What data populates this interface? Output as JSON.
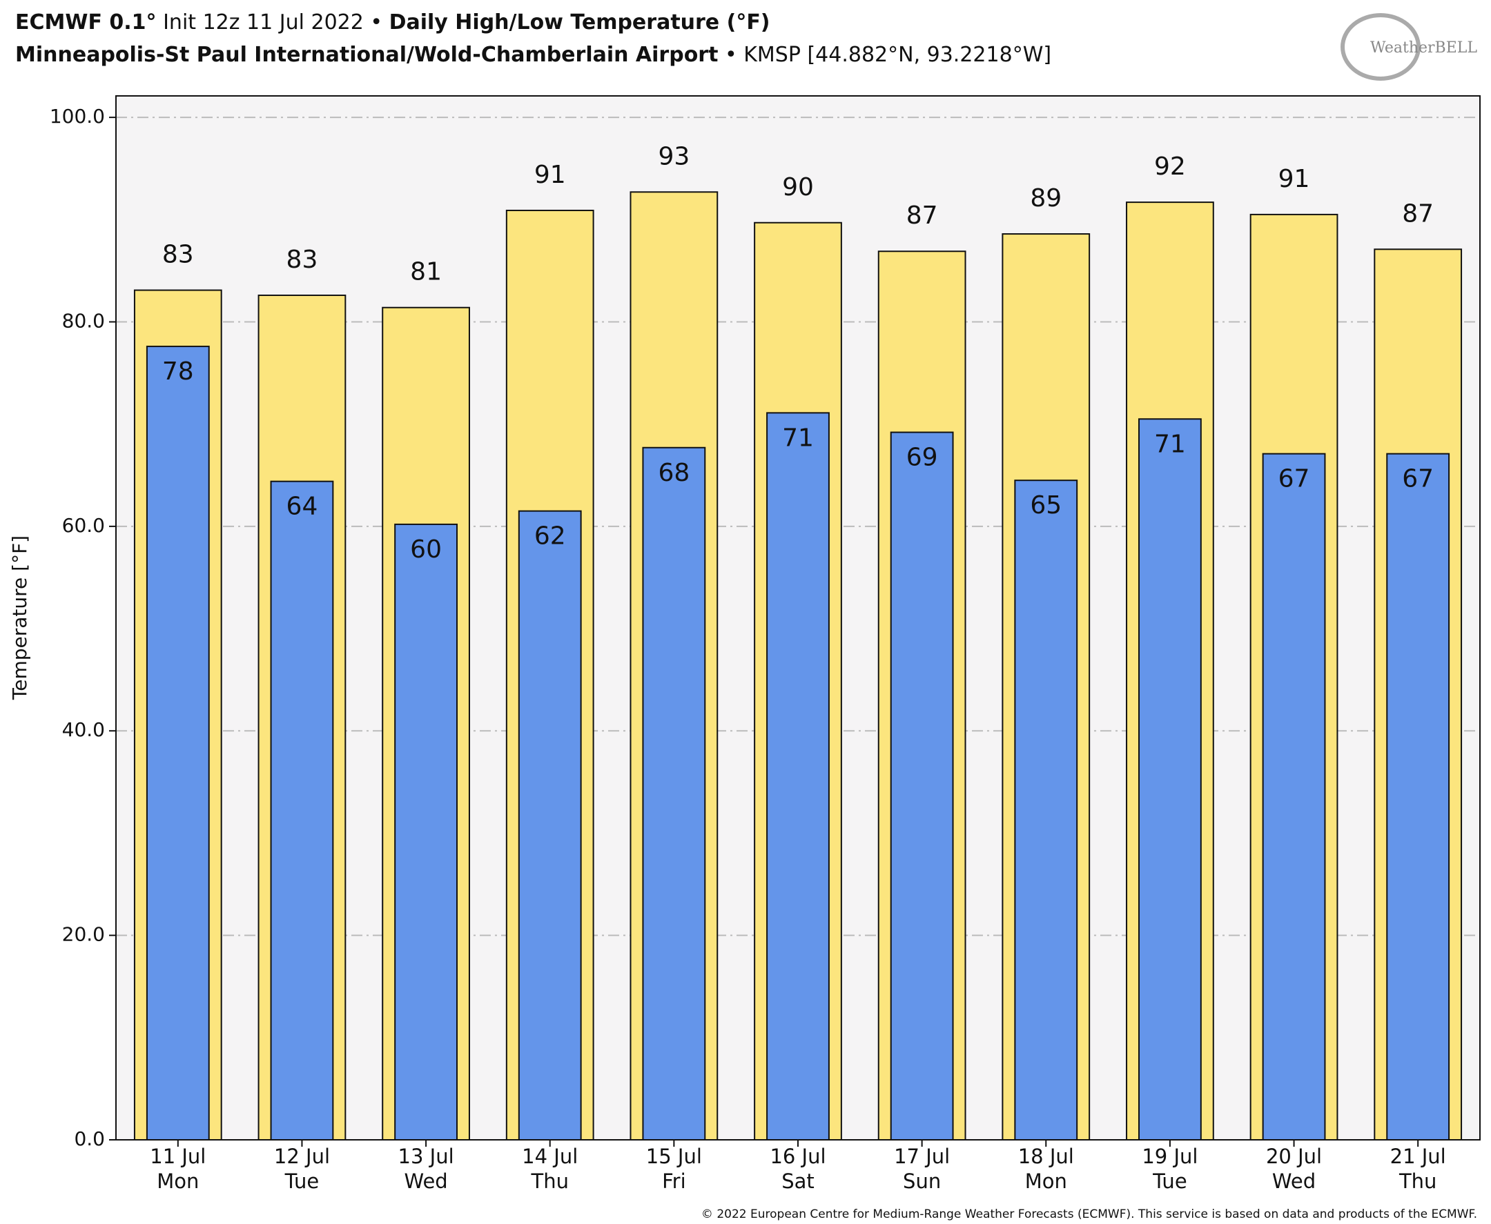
{
  "chart_data": {
    "type": "overlap-bar",
    "title": [
      {
        "text": "ECMWF 0.1°",
        "bold": true
      },
      {
        "text": " Init 12z 11 Jul 2022 • ",
        "bold": false
      },
      {
        "text": "Daily High/Low Temperature (°F)",
        "bold": true
      }
    ],
    "subtitle": [
      {
        "text": "Minneapolis-St Paul International/Wold-Chamberlain Airport",
        "bold": true
      },
      {
        "text": " • KMSP [44.882°N, 93.2218°W]",
        "bold": false
      }
    ],
    "logo": "WeatherBELL",
    "footer": "© 2022 European Centre for Medium-Range Weather Forecasts (ECMWF). This service is based on data and products of the ECMWF.",
    "ylabel": "Temperature [°F]",
    "categories": [
      [
        "11 Jul",
        "Mon"
      ],
      [
        "12 Jul",
        "Tue"
      ],
      [
        "13 Jul",
        "Wed"
      ],
      [
        "14 Jul",
        "Thu"
      ],
      [
        "15 Jul",
        "Fri"
      ],
      [
        "16 Jul",
        "Sat"
      ],
      [
        "17 Jul",
        "Sun"
      ],
      [
        "18 Jul",
        "Mon"
      ],
      [
        "19 Jul",
        "Tue"
      ],
      [
        "20 Jul",
        "Wed"
      ],
      [
        "21 Jul",
        "Thu"
      ]
    ],
    "series": [
      {
        "name": "High",
        "color": "#fce57e",
        "values": [
          83.1,
          82.6,
          81.4,
          90.9,
          92.7,
          89.7,
          86.9,
          88.6,
          91.7,
          90.5,
          87.1
        ],
        "value_labels": [
          "83",
          "83",
          "81",
          "91",
          "93",
          "90",
          "87",
          "89",
          "92",
          "91",
          "87"
        ]
      },
      {
        "name": "Low",
        "color": "#6495ea",
        "values": [
          77.6,
          64.4,
          60.2,
          61.5,
          67.7,
          71.1,
          69.2,
          64.5,
          70.5,
          67.1,
          67.1
        ],
        "value_labels": [
          "78",
          "64",
          "60",
          "62",
          "68",
          "71",
          "69",
          "65",
          "71",
          "67",
          "67"
        ]
      }
    ],
    "ylim": [
      0,
      102.1
    ],
    "yticks": [
      {
        "value": 0,
        "label": "0.0"
      },
      {
        "value": 20,
        "label": "20.0"
      },
      {
        "value": 40,
        "label": "40.0"
      },
      {
        "value": 60,
        "label": "60.0"
      },
      {
        "value": 80,
        "label": "80.0"
      },
      {
        "value": 100,
        "label": "100.0"
      }
    ],
    "grid": true
  }
}
